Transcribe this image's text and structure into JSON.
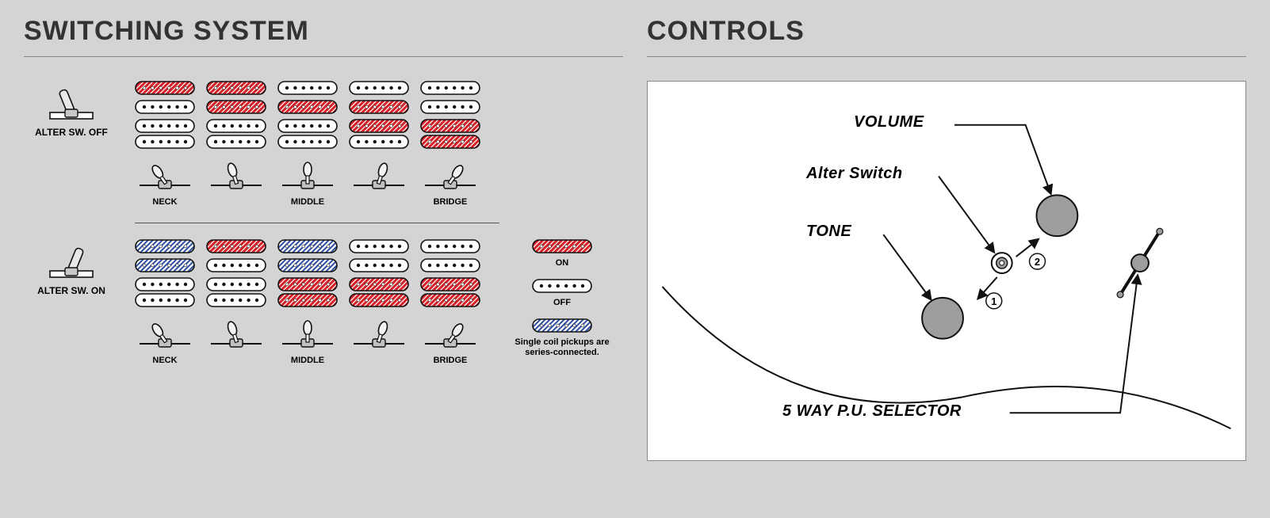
{
  "switching": {
    "title": "SWITCHING SYSTEM",
    "colors": {
      "on": "#d62027",
      "off": "#ffffff",
      "series": "#2b4ea0",
      "outline": "#111111",
      "dot": "#ffffff"
    },
    "positions": [
      "NECK",
      "",
      "MIDDLE",
      "",
      "BRIDGE"
    ],
    "blocks": [
      {
        "sideLabel": "ALTER SW. OFF",
        "toggleOn": false,
        "rows": [
          {
            "type": "single",
            "cells": [
              "on",
              "on",
              "off",
              "off",
              "off"
            ]
          },
          {
            "type": "single",
            "cells": [
              "off",
              "on",
              "on",
              "on",
              "off"
            ]
          },
          {
            "type": "double",
            "cells": [
              [
                "off",
                "off"
              ],
              [
                "off",
                "off"
              ],
              [
                "off",
                "off"
              ],
              [
                "on",
                "off"
              ],
              [
                "on",
                "on"
              ]
            ]
          }
        ]
      },
      {
        "sideLabel": "ALTER SW. ON",
        "toggleOn": true,
        "rows": [
          {
            "type": "single",
            "cells": [
              "series",
              "on",
              "series",
              "off",
              "off"
            ]
          },
          {
            "type": "single",
            "cells": [
              "series",
              "off",
              "series",
              "off",
              "off"
            ]
          },
          {
            "type": "double",
            "cells": [
              [
                "off",
                "off"
              ],
              [
                "off",
                "off"
              ],
              [
                "on",
                "on"
              ],
              [
                "on",
                "on"
              ],
              [
                "on",
                "on"
              ]
            ]
          }
        ]
      }
    ],
    "legend": {
      "on": "ON",
      "off": "OFF",
      "series": "Single coil pickups are series-connected."
    },
    "switchLeverAngles": [
      -35,
      -18,
      0,
      18,
      35
    ]
  },
  "controls": {
    "title": "CONTROLS",
    "labels": {
      "volume": "VOLUME",
      "alter": "Alter Switch",
      "tone": "TONE",
      "selector": "5 WAY P.U. SELECTOR"
    },
    "badges": {
      "one": "1",
      "two": "2"
    },
    "colors": {
      "bg": "#ffffff",
      "knob": "#9e9e9e",
      "outline": "#111111"
    }
  }
}
